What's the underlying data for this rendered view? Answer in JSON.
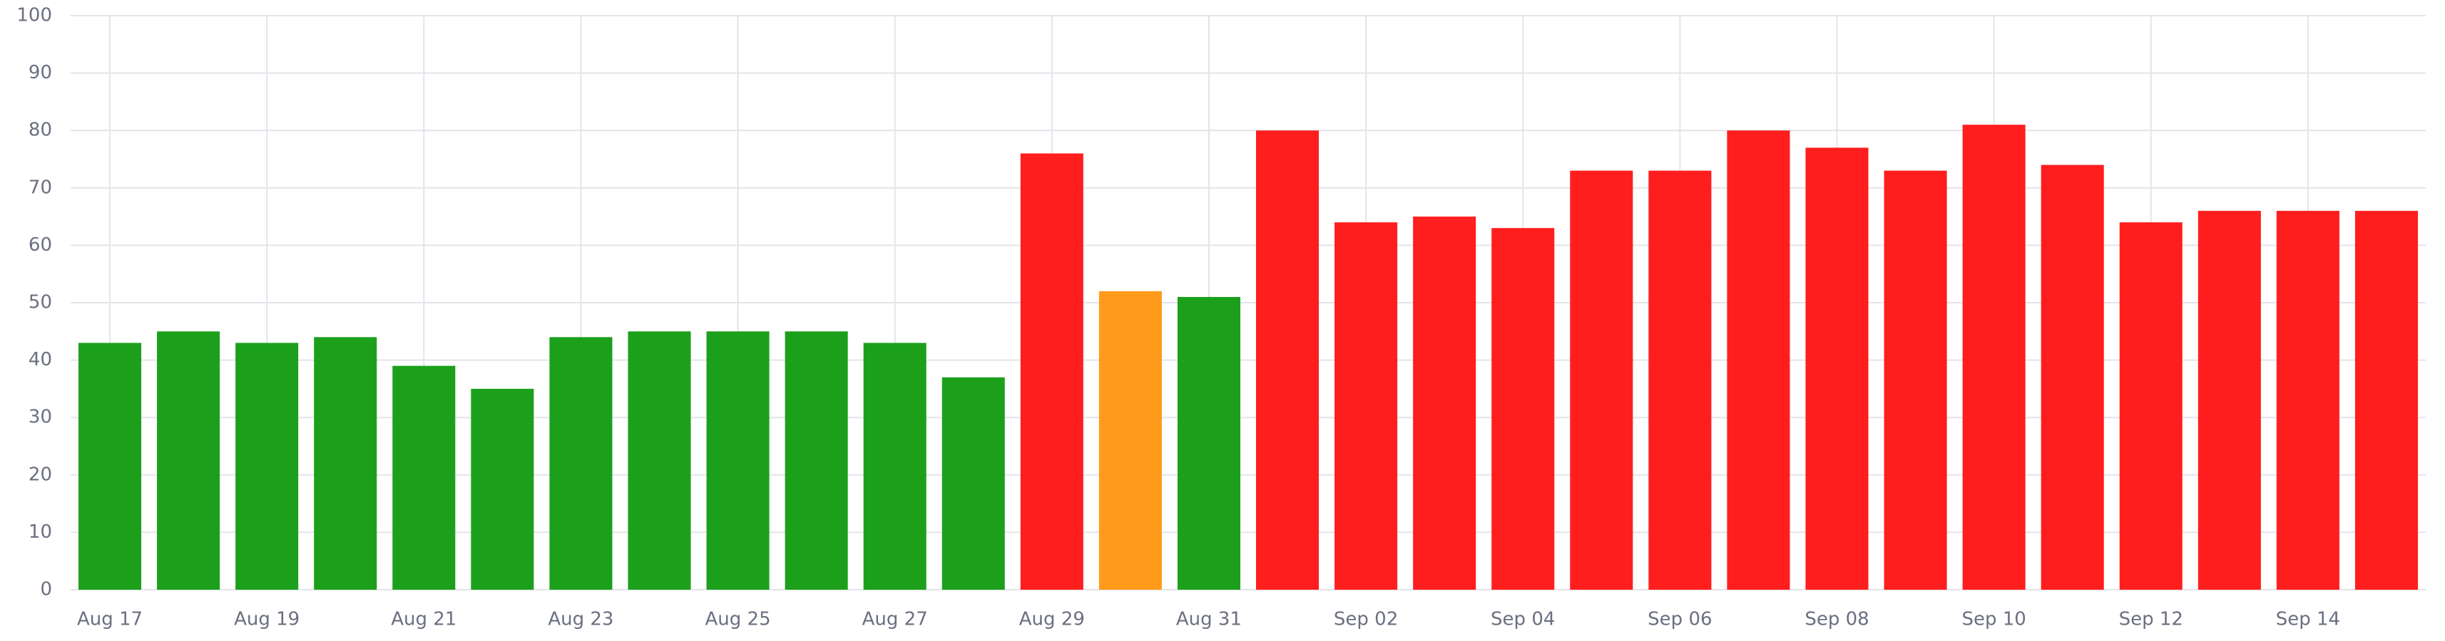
{
  "chart_data": {
    "type": "bar",
    "categories": [
      "Aug 17",
      null,
      "Aug 19",
      null,
      "Aug 21",
      null,
      "Aug 23",
      null,
      "Aug 25",
      null,
      "Aug 27",
      null,
      "Aug 29",
      null,
      "Aug 31",
      null,
      "Sep 02",
      null,
      "Sep 04",
      null,
      "Sep 06",
      null,
      "Sep 08",
      null,
      "Sep 10",
      null,
      "Sep 12",
      null,
      "Sep 14",
      null
    ],
    "values": [
      43,
      45,
      43,
      44,
      39,
      35,
      44,
      45,
      45,
      45,
      43,
      37,
      76,
      52,
      51,
      80,
      64,
      65,
      63,
      73,
      73,
      80,
      77,
      73,
      81,
      74,
      64,
      66,
      66,
      66
    ],
    "colors": [
      "#1ca01c",
      "#1ca01c",
      "#1ca01c",
      "#1ca01c",
      "#1ca01c",
      "#1ca01c",
      "#1ca01c",
      "#1ca01c",
      "#1ca01c",
      "#1ca01c",
      "#1ca01c",
      "#1ca01c",
      "#ff1e1e",
      "#ff9a1a",
      "#1ca01c",
      "#ff1e1e",
      "#ff1e1e",
      "#ff1e1e",
      "#ff1e1e",
      "#ff1e1e",
      "#ff1e1e",
      "#ff1e1e",
      "#ff1e1e",
      "#ff1e1e",
      "#ff1e1e",
      "#ff1e1e",
      "#ff1e1e",
      "#ff1e1e",
      "#ff1e1e",
      "#ff1e1e"
    ],
    "ylim": [
      0,
      100
    ],
    "yticks": [
      0,
      10,
      20,
      30,
      40,
      50,
      60,
      70,
      80,
      90,
      100
    ],
    "grid": true
  }
}
